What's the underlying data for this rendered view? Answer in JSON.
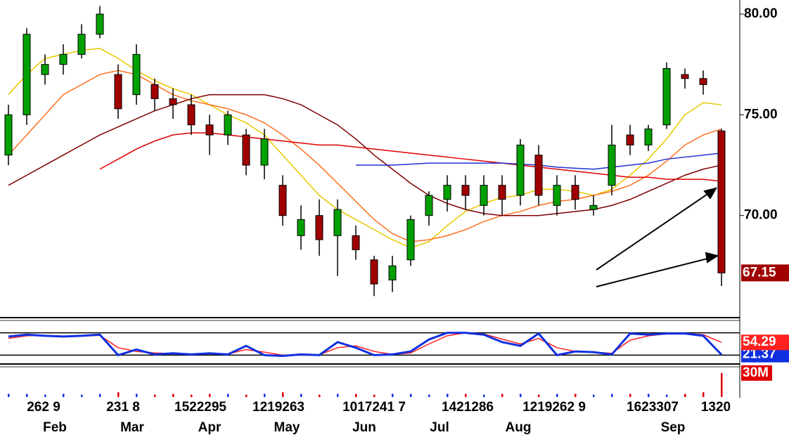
{
  "chart_data": {
    "type": "candlestick",
    "ylim": [
      65,
      80.7
    ],
    "yticks": [
      {
        "value": 80,
        "label": "80.00"
      },
      {
        "value": 75,
        "label": "75.00"
      },
      {
        "value": 70,
        "label": "70.00"
      }
    ],
    "up_color": "#00a000",
    "down_color": "#a00000",
    "candles": {
      "open": [
        73,
        75,
        77,
        77.5,
        78,
        79,
        77,
        76,
        76.5,
        75.8,
        75.5,
        74.5,
        74,
        74,
        72.5,
        71.5,
        69,
        70,
        69,
        69,
        67.8,
        66.8,
        67.8,
        70,
        70.8,
        71.5,
        70.5,
        71.5,
        71,
        73,
        70.5,
        71.5,
        70.3,
        71.5,
        74,
        73.5,
        74.5,
        77,
        76.8,
        74.2
      ],
      "high": [
        75.5,
        79.3,
        78,
        78.5,
        79.5,
        80.4,
        77.5,
        78.5,
        76.8,
        76.3,
        76,
        75,
        75.2,
        74.3,
        74.3,
        72,
        70.5,
        70.8,
        70.8,
        69.5,
        68,
        68,
        70,
        71.2,
        72,
        72,
        72,
        72,
        73.8,
        73.5,
        72,
        72,
        71,
        74.5,
        74.5,
        74.5,
        77.6,
        77.3,
        77.2,
        74.3
      ],
      "low": [
        72.5,
        74.5,
        76.5,
        77,
        77.8,
        78.8,
        74.8,
        75.5,
        75.2,
        74.8,
        74,
        73,
        73.5,
        72,
        71.8,
        69.5,
        68.3,
        68,
        67,
        67.8,
        66,
        66.2,
        67.5,
        69.5,
        70.2,
        70.3,
        70,
        70,
        70.5,
        70.5,
        70,
        70.3,
        70,
        71,
        73,
        73.2,
        74.3,
        76.3,
        76,
        66.5
      ],
      "close": [
        75,
        79,
        77.5,
        78,
        79,
        80,
        75.3,
        78,
        75.8,
        75.5,
        74.5,
        74,
        75,
        72.5,
        73.8,
        70,
        69.8,
        68.8,
        70.3,
        68.3,
        66.6,
        67.5,
        69.8,
        71,
        71.5,
        71,
        71.5,
        70.8,
        73.5,
        71,
        71.5,
        70.8,
        70.5,
        73.5,
        73.5,
        74.3,
        77.3,
        76.8,
        76.5,
        67.15
      ]
    },
    "moving_averages": [
      {
        "color": "#e8c800",
        "values": [
          76,
          77,
          77.8,
          78,
          78.2,
          78.3,
          77.8,
          77.2,
          76.7,
          76.3,
          76,
          75.5,
          75,
          74.6,
          74,
          73,
          72,
          71,
          70.3,
          69.8,
          69.3,
          68.8,
          68.4,
          68.7,
          69.5,
          70.2,
          70.6,
          70.9,
          71,
          71.3,
          71.3,
          71.2,
          71,
          71.3,
          72,
          72.8,
          73.8,
          75,
          75.6,
          75.5
        ]
      },
      {
        "color": "#ff7020",
        "values": [
          73,
          74,
          75,
          76,
          76.5,
          77,
          77.2,
          77,
          76.5,
          76,
          75.7,
          75.5,
          75.3,
          75,
          74.6,
          74,
          73.3,
          72.5,
          71.6,
          70.7,
          69.8,
          69.1,
          68.7,
          68.8,
          69,
          69.3,
          69.7,
          70,
          70.2,
          70.5,
          70.7,
          70.8,
          71,
          71.2,
          71.5,
          72,
          72.7,
          73.5,
          74,
          74.3
        ]
      },
      {
        "color": "#800000",
        "values": [
          71.5,
          72,
          72.5,
          73,
          73.5,
          74,
          74.4,
          74.8,
          75.2,
          75.5,
          75.8,
          76,
          76,
          76,
          76,
          75.8,
          75.5,
          75,
          74.5,
          73.8,
          73,
          72.3,
          71.6,
          71,
          70.6,
          70.3,
          70.1,
          70,
          70,
          70,
          70.1,
          70.2,
          70.3,
          70.5,
          70.8,
          71.2,
          71.6,
          72,
          72.3,
          72.5
        ]
      },
      {
        "color": "#e00000",
        "values": [
          null,
          null,
          null,
          null,
          null,
          72.3,
          72.8,
          73.3,
          73.7,
          74,
          74.1,
          74.1,
          74,
          73.9,
          73.8,
          73.7,
          73.6,
          73.5,
          73.5,
          73.4,
          73.3,
          73.2,
          73.1,
          73,
          72.9,
          72.8,
          72.7,
          72.6,
          72.5,
          72.4,
          72.3,
          72.2,
          72.1,
          72,
          71.9,
          71.9,
          71.8,
          71.8,
          71.8,
          71.7
        ]
      },
      {
        "color": "#2030d0",
        "values": [
          null,
          null,
          null,
          null,
          null,
          null,
          null,
          null,
          null,
          null,
          null,
          null,
          null,
          null,
          null,
          null,
          null,
          null,
          null,
          72.5,
          72.5,
          72.5,
          72.55,
          72.6,
          72.6,
          72.6,
          72.6,
          72.6,
          72.55,
          72.5,
          72.4,
          72.35,
          72.3,
          72.4,
          72.5,
          72.6,
          72.8,
          72.9,
          73,
          73.1
        ]
      }
    ],
    "stochastic": {
      "ylim": [
        0,
        100
      ],
      "levels": [
        20,
        80
      ],
      "series": [
        {
          "color": "#ff2020",
          "values": [
            65,
            72,
            73,
            71,
            71,
            73,
            40,
            30,
            26,
            24,
            23,
            24,
            23,
            35,
            28,
            20,
            20,
            21,
            40,
            45,
            30,
            22,
            26,
            50,
            72,
            80,
            77,
            63,
            50,
            65,
            40,
            30,
            28,
            25,
            60,
            72,
            77,
            78,
            75,
            54.29
          ]
        },
        {
          "color": "#1030e0",
          "values": [
            70,
            75,
            72,
            70,
            72,
            75,
            20,
            35,
            22,
            25,
            22,
            25,
            22,
            45,
            20,
            18,
            22,
            20,
            55,
            40,
            20,
            22,
            30,
            62,
            80,
            80,
            75,
            55,
            45,
            78,
            20,
            30,
            28,
            22,
            78,
            75,
            78,
            78,
            72,
            21.37
          ]
        }
      ]
    },
    "volume": {
      "ylim": [
        0,
        36
      ],
      "yticks": [
        {
          "value": 30,
          "label": "30M"
        }
      ],
      "values": [
        4,
        4,
        3,
        4,
        3,
        4,
        6,
        4,
        3,
        4,
        3,
        4,
        4,
        3,
        4,
        6,
        4,
        3,
        4,
        4,
        3,
        4,
        4,
        3,
        4,
        4,
        3,
        4,
        4,
        3,
        4,
        4,
        3,
        4,
        4,
        4,
        3,
        4,
        6,
        30
      ]
    },
    "x_axis": {
      "day_labels": [
        "262 9",
        "231 8",
        "1522295",
        "1219263",
        "1017241 7",
        "1421286",
        "1219262 9",
        "1623307",
        "1320"
      ],
      "months": [
        "Feb",
        "Mar",
        "Apr",
        "May",
        "Jun",
        "Jul",
        "Aug",
        "Sep"
      ]
    }
  }
}
